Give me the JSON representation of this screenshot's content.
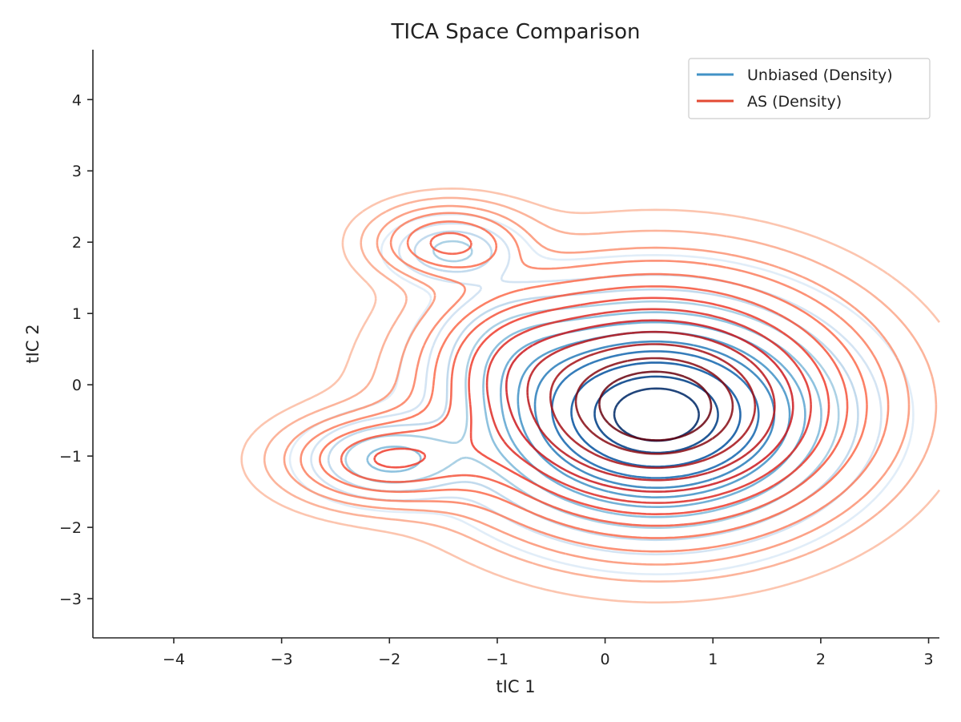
{
  "chart_data": {
    "type": "contour",
    "title": "TICA Space Comparison",
    "xlabel": "tIC 1",
    "ylabel": "tIC 2",
    "xlim": [
      -4.75,
      3.1
    ],
    "ylim": [
      -3.55,
      4.7
    ],
    "xticks": [
      -4,
      -3,
      -2,
      -1,
      0,
      1,
      2,
      3
    ],
    "yticks": [
      -3,
      -2,
      -1,
      0,
      1,
      2,
      3,
      4
    ],
    "xtick_labels": [
      "−4",
      "−3",
      "−2",
      "−1",
      "0",
      "1",
      "2",
      "3"
    ],
    "ytick_labels": [
      "−3",
      "−2",
      "−1",
      "0",
      "1",
      "2",
      "3",
      "4"
    ],
    "grid": false,
    "legend_position": "top-right",
    "series": [
      {
        "name": "Unbiased (Density)",
        "color": "#4292c6",
        "colormap": "Blues",
        "peaks": [
          {
            "x": 0.48,
            "y": -0.42,
            "sx": 0.85,
            "sy": 0.8,
            "w": 1.0
          },
          {
            "x": -2.0,
            "y": -1.05,
            "sx": 0.42,
            "sy": 0.32,
            "w": 0.22
          },
          {
            "x": -1.42,
            "y": 1.88,
            "sx": 0.32,
            "sy": 0.25,
            "w": 0.16
          },
          {
            "x": -0.85,
            "y": 0.5,
            "sx": 0.45,
            "sy": 0.55,
            "w": 0.1
          }
        ],
        "levels": [
          0.02,
          0.05,
          0.09,
          0.14,
          0.2,
          0.27,
          0.35,
          0.44,
          0.54,
          0.66,
          0.8,
          0.9
        ]
      },
      {
        "name": "AS (Density)",
        "color": "#e34a33",
        "colormap": "Reds",
        "peaks": [
          {
            "x": 0.48,
            "y": -0.3,
            "sx": 1.0,
            "sy": 0.95,
            "w": 1.0
          },
          {
            "x": -2.05,
            "y": -1.05,
            "sx": 0.55,
            "sy": 0.38,
            "w": 0.26
          },
          {
            "x": -1.45,
            "y": 2.0,
            "sx": 0.42,
            "sy": 0.32,
            "w": 0.22
          },
          {
            "x": -0.9,
            "y": 0.45,
            "sx": 0.5,
            "sy": 0.6,
            "w": 0.12
          }
        ],
        "levels": [
          0.015,
          0.035,
          0.065,
          0.1,
          0.15,
          0.21,
          0.28,
          0.36,
          0.45,
          0.55,
          0.66,
          0.78,
          0.88
        ]
      }
    ]
  }
}
